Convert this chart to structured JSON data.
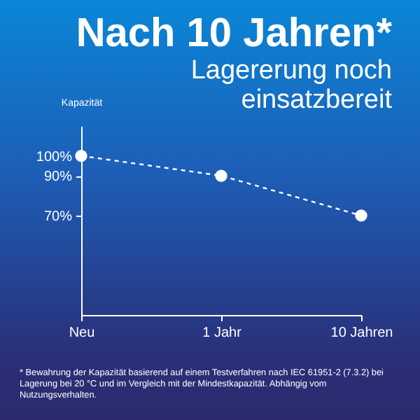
{
  "chart_data": {
    "type": "line",
    "title": "Nach 10 Jahren*",
    "subtitle": "Lagererung noch einsatzbereit",
    "ylabel": "Kapazität",
    "categories": [
      "Neu",
      "1 Jahr",
      "10 Jahren"
    ],
    "series": [
      {
        "color": "#ffffff",
        "values": [
          100,
          90,
          70
        ]
      }
    ],
    "ylim": [
      20,
      115
    ],
    "yticks": [
      {
        "value": 70,
        "label": "70%"
      },
      {
        "value": 90,
        "label": "90%"
      },
      {
        "value": 100,
        "label": "100%"
      }
    ],
    "grid": false,
    "marker": "circle",
    "line_style": "dashed",
    "annotations": [
      "* Bewahrung der Kapazität basierend auf einem Testverfahren nach IEC 61951-2 (7.3.2) bei Lagerung bei 20 °C und im Vergleich mit der Mindestkapazität. Abhängig vom Nutzungsverhalten."
    ]
  }
}
